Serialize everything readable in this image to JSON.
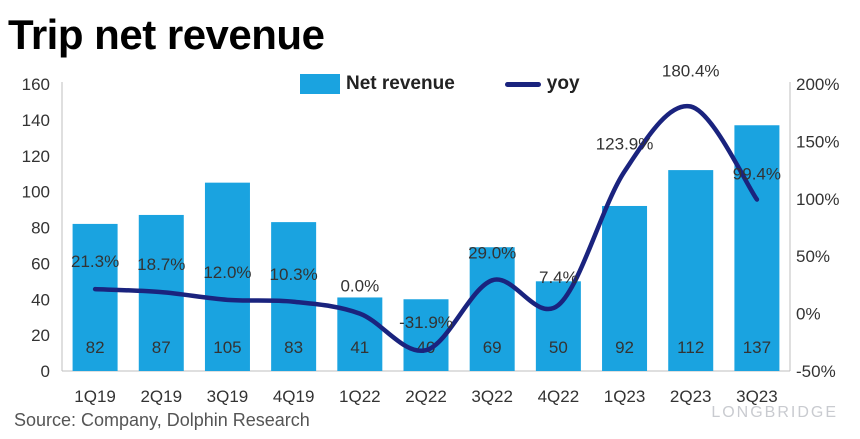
{
  "title": "Trip net revenue",
  "source": "Source: Company, Dolphin Research",
  "watermark": "LONGBRIDGE",
  "colors": {
    "bar": "#1aa3e0",
    "line": "#1a237e",
    "text": "#333333",
    "axis": "#bfbfbf"
  },
  "chart_data": {
    "type": "bar",
    "categories": [
      "1Q19",
      "2Q19",
      "3Q19",
      "4Q19",
      "1Q22",
      "2Q22",
      "3Q22",
      "4Q22",
      "1Q23",
      "2Q23",
      "3Q23"
    ],
    "series": [
      {
        "name": "Net revenue",
        "type": "bar",
        "axis": "left",
        "values": [
          82,
          87,
          105,
          83,
          41,
          40,
          69,
          50,
          92,
          112,
          137
        ],
        "labels": [
          "82",
          "87",
          "105",
          "83",
          "41",
          "40",
          "69",
          "50",
          "92",
          "112",
          "137"
        ]
      },
      {
        "name": "yoy",
        "type": "line",
        "axis": "right",
        "values": [
          21.3,
          18.7,
          12.0,
          10.3,
          0.0,
          -31.9,
          29.0,
          7.4,
          123.9,
          180.4,
          99.4
        ],
        "labels": [
          "21.3%",
          "18.7%",
          "12.0%",
          "10.3%",
          "0.0%",
          "-31.9%",
          "29.0%",
          "7.4%",
          "123.9%",
          "180.4%",
          "99.4%"
        ]
      }
    ],
    "ylim_left": [
      0,
      160
    ],
    "yticks_left": [
      "0",
      "20",
      "40",
      "60",
      "80",
      "100",
      "120",
      "140",
      "160"
    ],
    "ylim_right": [
      -50,
      200
    ],
    "yticks_right": [
      "-50%",
      "0%",
      "50%",
      "100%",
      "150%",
      "200%"
    ],
    "legend": "top-center",
    "grid": false
  }
}
